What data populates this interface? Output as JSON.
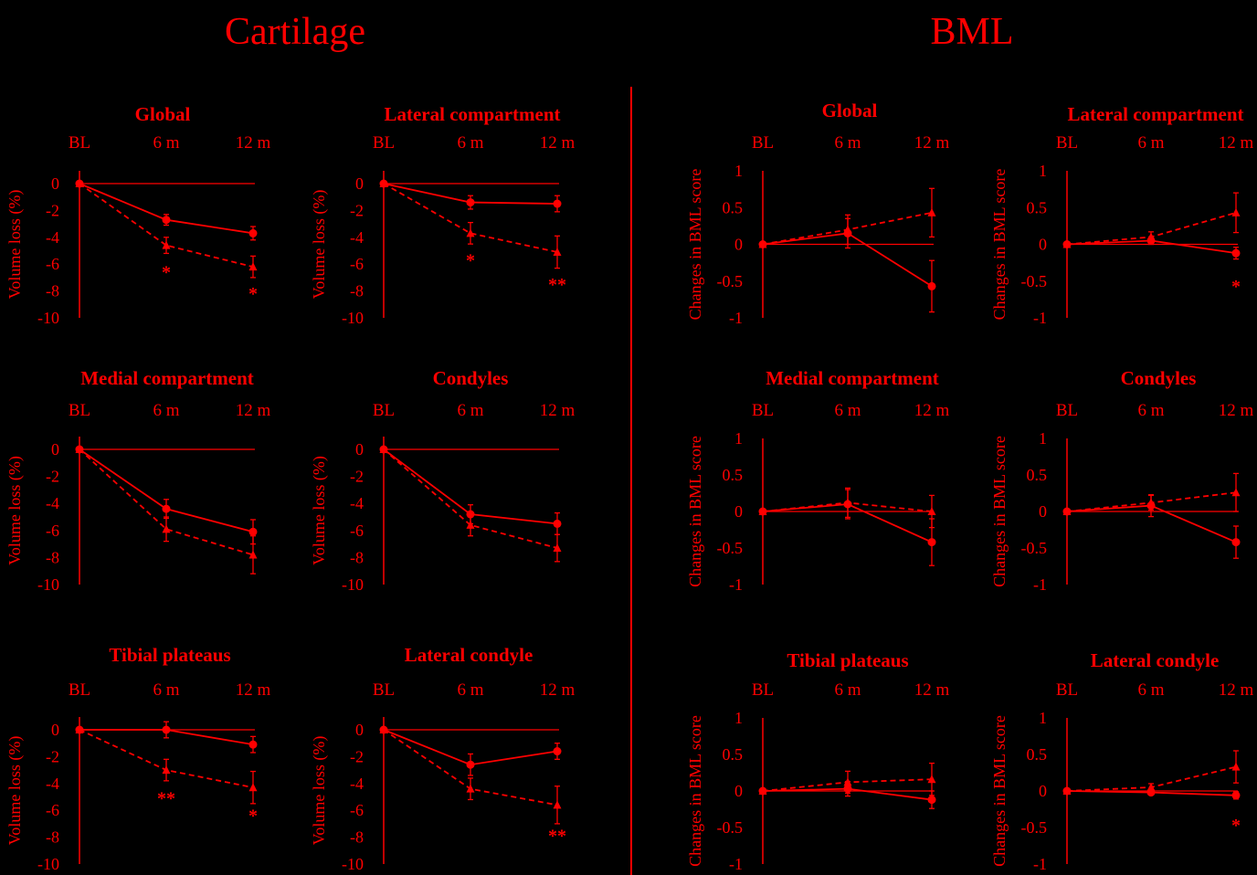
{
  "colors": {
    "background": "#000000",
    "accent": "#ff0000"
  },
  "sections": [
    {
      "title": "Cartilage"
    },
    {
      "title": "BML"
    }
  ],
  "chart_data": [
    {
      "group": "Cartilage",
      "type": "line",
      "title": "Global",
      "ylabel": "Volume loss (%)",
      "categories": [
        "BL",
        "6 m",
        "12 m"
      ],
      "ylim": [
        -10,
        0
      ],
      "yticks": [
        0,
        -2,
        -4,
        -6,
        -8,
        -10
      ],
      "series": [
        {
          "style": "solid",
          "marker": "circle",
          "values": [
            0,
            -2.7,
            -3.7
          ],
          "err": [
            0,
            0.4,
            0.5
          ]
        },
        {
          "style": "dashed",
          "marker": "triangle",
          "values": [
            0,
            -4.6,
            -6.2
          ],
          "err": [
            0,
            0.6,
            0.8
          ]
        }
      ],
      "annotations": [
        {
          "x": "6 m",
          "y": -6.5,
          "text": "*"
        },
        {
          "x": "12 m",
          "y": -8.1,
          "text": "*"
        }
      ]
    },
    {
      "group": "Cartilage",
      "type": "line",
      "title": "Lateral compartment",
      "ylabel": "Volume loss (%)",
      "categories": [
        "BL",
        "6 m",
        "12 m"
      ],
      "ylim": [
        -10,
        0
      ],
      "yticks": [
        0,
        -2,
        -4,
        -6,
        -8,
        -10
      ],
      "series": [
        {
          "style": "solid",
          "marker": "circle",
          "values": [
            0,
            -1.4,
            -1.5
          ],
          "err": [
            0,
            0.5,
            0.6
          ]
        },
        {
          "style": "dashed",
          "marker": "triangle",
          "values": [
            0,
            -3.7,
            -5.1
          ],
          "err": [
            0,
            0.8,
            1.2
          ]
        }
      ],
      "annotations": [
        {
          "x": "6 m",
          "y": -5.6,
          "text": "*"
        },
        {
          "x": "12 m",
          "y": -7.4,
          "text": "**"
        }
      ]
    },
    {
      "group": "Cartilage",
      "type": "line",
      "title": "Medial compartment",
      "ylabel": "Volume loss (%)",
      "categories": [
        "BL",
        "6 m",
        "12 m"
      ],
      "ylim": [
        -10,
        0
      ],
      "yticks": [
        0,
        -2,
        -4,
        -6,
        -8,
        -10
      ],
      "series": [
        {
          "style": "solid",
          "marker": "circle",
          "values": [
            0,
            -4.4,
            -6.1
          ],
          "err": [
            0,
            0.7,
            0.9
          ]
        },
        {
          "style": "dashed",
          "marker": "triangle",
          "values": [
            0,
            -5.9,
            -7.8
          ],
          "err": [
            0,
            0.9,
            1.4
          ]
        }
      ],
      "annotations": []
    },
    {
      "group": "Cartilage",
      "type": "line",
      "title": "Condyles",
      "ylabel": "Volume loss (%)",
      "categories": [
        "BL",
        "6 m",
        "12 m"
      ],
      "ylim": [
        -10,
        0
      ],
      "yticks": [
        0,
        -2,
        -4,
        -6,
        -8,
        -10
      ],
      "series": [
        {
          "style": "solid",
          "marker": "circle",
          "values": [
            0,
            -4.8,
            -5.5
          ],
          "err": [
            0,
            0.7,
            0.8
          ]
        },
        {
          "style": "dashed",
          "marker": "triangle",
          "values": [
            0,
            -5.6,
            -7.3
          ],
          "err": [
            0,
            0.8,
            1.0
          ]
        }
      ],
      "annotations": []
    },
    {
      "group": "Cartilage",
      "type": "line",
      "title": "Tibial plateaus",
      "ylabel": "Volume loss (%)",
      "categories": [
        "BL",
        "6 m",
        "12 m"
      ],
      "ylim": [
        -10,
        0
      ],
      "yticks": [
        0,
        -2,
        -4,
        -6,
        -8,
        -10
      ],
      "series": [
        {
          "style": "solid",
          "marker": "circle",
          "values": [
            0,
            0,
            -1.1
          ],
          "err": [
            0,
            0.6,
            0.6
          ]
        },
        {
          "style": "dashed",
          "marker": "triangle",
          "values": [
            0,
            -3.0,
            -4.3
          ],
          "err": [
            0,
            0.8,
            1.2
          ]
        }
      ],
      "annotations": [
        {
          "x": "6 m",
          "y": -5.0,
          "text": "**"
        },
        {
          "x": "12 m",
          "y": -6.3,
          "text": "*"
        }
      ]
    },
    {
      "group": "Cartilage",
      "type": "line",
      "title": "Lateral condyle",
      "ylabel": "Volume loss (%)",
      "categories": [
        "BL",
        "6 m",
        "12 m"
      ],
      "ylim": [
        -10,
        0
      ],
      "yticks": [
        0,
        -2,
        -4,
        -6,
        -8,
        -10
      ],
      "series": [
        {
          "style": "solid",
          "marker": "circle",
          "values": [
            0,
            -2.6,
            -1.6
          ],
          "err": [
            0,
            0.8,
            0.6
          ]
        },
        {
          "style": "dashed",
          "marker": "triangle",
          "values": [
            0,
            -4.4,
            -5.6
          ],
          "err": [
            0,
            0.8,
            1.4
          ]
        }
      ],
      "annotations": [
        {
          "x": "12 m",
          "y": -7.8,
          "text": "**"
        }
      ]
    },
    {
      "group": "BML",
      "type": "line",
      "title": "Global",
      "ylabel": "Changes in BML score",
      "categories": [
        "BL",
        "6 m",
        "12 m"
      ],
      "ylim": [
        -1,
        1
      ],
      "yticks": [
        1,
        0.5,
        0,
        -0.5,
        -1
      ],
      "series": [
        {
          "style": "solid",
          "marker": "circle",
          "values": [
            0,
            0.15,
            -0.57
          ],
          "err": [
            0,
            0.2,
            0.35
          ]
        },
        {
          "style": "dashed",
          "marker": "triangle",
          "values": [
            0,
            0.2,
            0.43
          ],
          "err": [
            0,
            0.2,
            0.33
          ]
        }
      ],
      "annotations": []
    },
    {
      "group": "BML",
      "type": "line",
      "title": "Lateral compartment",
      "ylabel": "Changes in BML score",
      "categories": [
        "BL",
        "6 m",
        "12 m"
      ],
      "ylim": [
        -1,
        1
      ],
      "yticks": [
        1,
        0.5,
        0,
        -0.5,
        -1
      ],
      "series": [
        {
          "style": "solid",
          "marker": "circle",
          "values": [
            0,
            0.05,
            -0.12
          ],
          "err": [
            0,
            0.05,
            0.08
          ]
        },
        {
          "style": "dashed",
          "marker": "triangle",
          "values": [
            0,
            0.1,
            0.43
          ],
          "err": [
            0,
            0.07,
            0.27
          ]
        }
      ],
      "annotations": [
        {
          "x": "12 m",
          "y": -0.55,
          "text": "*"
        }
      ]
    },
    {
      "group": "BML",
      "type": "line",
      "title": "Medial compartment",
      "ylabel": "Changes in BML score",
      "categories": [
        "BL",
        "6 m",
        "12 m"
      ],
      "ylim": [
        -1,
        1
      ],
      "yticks": [
        1,
        0.5,
        0,
        -0.5,
        -1
      ],
      "series": [
        {
          "style": "solid",
          "marker": "circle",
          "values": [
            0,
            0.1,
            -0.42
          ],
          "err": [
            0,
            0.2,
            0.32
          ]
        },
        {
          "style": "dashed",
          "marker": "triangle",
          "values": [
            0,
            0.12,
            0
          ],
          "err": [
            0,
            0.2,
            0.22
          ]
        }
      ],
      "annotations": []
    },
    {
      "group": "BML",
      "type": "line",
      "title": "Condyles",
      "ylabel": "Changes in BML score",
      "categories": [
        "BL",
        "6 m",
        "12 m"
      ],
      "ylim": [
        -1,
        1
      ],
      "yticks": [
        1,
        0.5,
        0,
        -0.5,
        -1
      ],
      "series": [
        {
          "style": "solid",
          "marker": "circle",
          "values": [
            0,
            0.08,
            -0.42
          ],
          "err": [
            0,
            0.15,
            0.22
          ]
        },
        {
          "style": "dashed",
          "marker": "triangle",
          "values": [
            0,
            0.12,
            0.26
          ],
          "err": [
            0,
            0.1,
            0.26
          ]
        }
      ],
      "annotations": []
    },
    {
      "group": "BML",
      "type": "line",
      "title": "Tibial plateaus",
      "ylabel": "Changes in BML score",
      "categories": [
        "BL",
        "6 m",
        "12 m"
      ],
      "ylim": [
        -1,
        1
      ],
      "yticks": [
        1,
        0.5,
        0,
        -0.5,
        -1
      ],
      "series": [
        {
          "style": "solid",
          "marker": "circle",
          "values": [
            0,
            0.03,
            -0.12
          ],
          "err": [
            0,
            0.1,
            0.12
          ]
        },
        {
          "style": "dashed",
          "marker": "triangle",
          "values": [
            0,
            0.12,
            0.16
          ],
          "err": [
            0,
            0.15,
            0.22
          ]
        }
      ],
      "annotations": []
    },
    {
      "group": "BML",
      "type": "line",
      "title": "Lateral condyle",
      "ylabel": "Changes in BML score",
      "categories": [
        "BL",
        "6 m",
        "12 m"
      ],
      "ylim": [
        -1,
        1
      ],
      "yticks": [
        1,
        0.5,
        0,
        -0.5,
        -1
      ],
      "series": [
        {
          "style": "solid",
          "marker": "circle",
          "values": [
            0,
            -0.02,
            -0.06
          ],
          "err": [
            0,
            0.03,
            0.05
          ]
        },
        {
          "style": "dashed",
          "marker": "triangle",
          "values": [
            0,
            0.05,
            0.33
          ],
          "err": [
            0,
            0.05,
            0.22
          ]
        }
      ],
      "annotations": [
        {
          "x": "12 m",
          "y": -0.45,
          "text": "*"
        }
      ]
    }
  ]
}
